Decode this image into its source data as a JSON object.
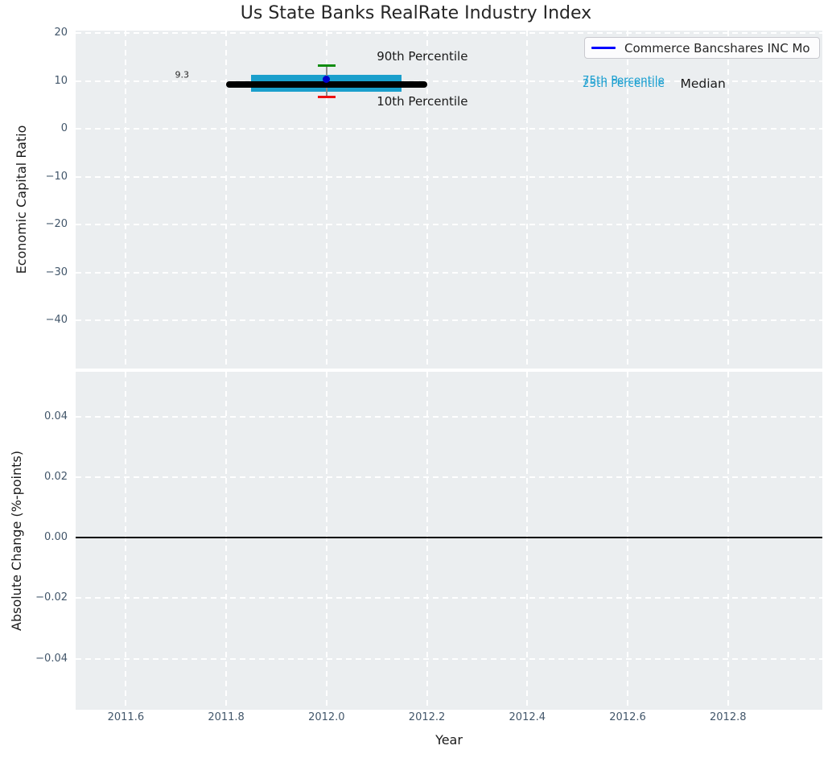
{
  "title": "Us State Banks RealRate Industry Index",
  "colors": {
    "plot_background": "#ebeef0",
    "gridline": "#ffffff",
    "tick_text": "#42566a",
    "text": "#1a1a1a",
    "box_fill": "#1a9fcc",
    "median_line": "#000000",
    "p90_cap": "#0f8c0f",
    "p10_cap": "#ee1111",
    "whisker": "#8c8c8c",
    "company_point": "#0000cd",
    "legend_line": "#0000ff",
    "zero_line": "#000000",
    "percentile_text": "#1b9fd0"
  },
  "legend": {
    "label": "Commerce Bancshares INC Mo",
    "position": "upper right"
  },
  "chart_data": [
    {
      "type": "boxplot",
      "title": "Us State Banks RealRate Industry Index",
      "ylabel": "Economic Capital Ratio",
      "ylim": [
        -50,
        20.5
      ],
      "xlim": [
        2011.5,
        2012.988
      ],
      "grid": "white dashed, on",
      "yticks": {
        "values": [
          20,
          10,
          0,
          -10,
          -20,
          -30,
          -40
        ],
        "labels": [
          "20",
          "10",
          "0",
          "−10",
          "−20",
          "−30",
          "−40"
        ]
      },
      "xticks": {
        "values": [
          2011.6,
          2011.8,
          2012.0,
          2012.2,
          2012.4,
          2012.6,
          2012.8
        ],
        "labels": []
      },
      "box": {
        "year": 2012.0,
        "p10": 6.7,
        "p25": 7.8,
        "median": 9.3,
        "p75": 11.3,
        "p90": 13.2,
        "box_x_range": [
          2011.85,
          2012.15
        ],
        "median_x_range": [
          2011.8,
          2012.2
        ]
      },
      "company_point": {
        "name": "Commerce Bancshares INC Mo",
        "x": 2012.0,
        "y": 10.3
      },
      "annotations": [
        {
          "text": "9.3",
          "x": 2011.712,
          "y": 11.3,
          "size": 11,
          "color": "#262626",
          "anchor": "center"
        },
        {
          "text": "90th Percentile",
          "x": 2012.1,
          "y": 15.2,
          "size": 15,
          "color": "#1a1a1a",
          "anchor": "left"
        },
        {
          "text": "10th Percentile",
          "x": 2012.1,
          "y": 5.7,
          "size": 15,
          "color": "#1a1a1a",
          "anchor": "left"
        },
        {
          "text": "75th Percentile",
          "x": 2012.51,
          "y": 10.05,
          "size": 13.5,
          "color": "#1b9fd0",
          "anchor": "left"
        },
        {
          "text": "25th Percentile",
          "x": 2012.51,
          "y": 9.4,
          "size": 13.5,
          "color": "#1b9fd0",
          "anchor": "left"
        },
        {
          "text": "Median",
          "x": 2012.705,
          "y": 9.5,
          "size": 15.5,
          "color": "#1a1a1a",
          "anchor": "left"
        }
      ]
    },
    {
      "type": "line",
      "ylabel": "Absolute Change (%-points)",
      "xlabel": "Year",
      "ylim": [
        -0.0569,
        0.0549
      ],
      "xlim": [
        2011.5,
        2012.988
      ],
      "grid": "white dashed, on",
      "yticks": {
        "values": [
          0.04,
          0.02,
          0.0,
          -0.02,
          -0.04
        ],
        "labels": [
          "0.04",
          "0.02",
          "0.00",
          "−0.02",
          "−0.04"
        ]
      },
      "xticks": {
        "values": [
          2011.6,
          2011.8,
          2012.0,
          2012.2,
          2012.4,
          2012.6,
          2012.8
        ],
        "labels": [
          "2011.6",
          "2011.8",
          "2012.0",
          "2012.2",
          "2012.4",
          "2012.6",
          "2012.8"
        ]
      },
      "zero_line_y": 0.0,
      "series": []
    }
  ]
}
